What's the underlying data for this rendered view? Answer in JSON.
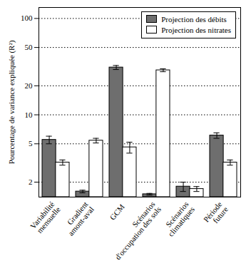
{
  "chart_data": {
    "type": "bar",
    "ylabel": "Pourcentage de variance expliquée (R²)",
    "categories": [
      "Variabilité mensuelle",
      "Gradient amont-aval",
      "GCM",
      "Scénarios d'occupation des sols",
      "Scénarios climatiques",
      "Période future"
    ],
    "series": [
      {
        "name": "Projection des débits",
        "color": "#6e6e6e",
        "values": [
          5.5,
          1.6,
          31,
          1.5,
          1.8,
          6.1
        ],
        "errors": [
          0.5,
          0.05,
          1.5,
          0.03,
          0.2,
          0.4
        ]
      },
      {
        "name": "Projection des nitrates",
        "color": "#ffffff",
        "values": [
          3.2,
          5.4,
          4.6,
          29,
          1.7,
          3.2
        ],
        "errors": [
          0.2,
          0.3,
          0.6,
          1.0,
          0.1,
          0.2
        ]
      }
    ],
    "log": "y",
    "ylim": [
      1.4,
      130
    ],
    "yticks": [
      2,
      5,
      10,
      20,
      50,
      100
    ],
    "grid": true,
    "legend": "top-right"
  }
}
